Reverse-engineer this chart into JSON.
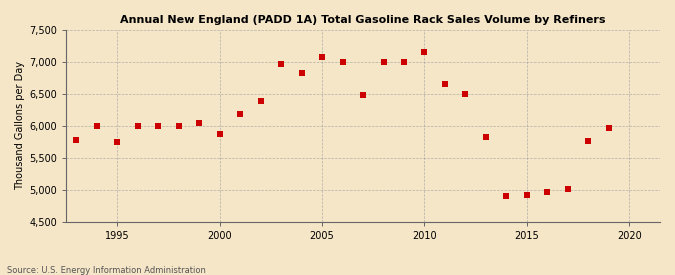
{
  "title": "Annual New England (PADD 1A) Total Gasoline Rack Sales Volume by Refiners",
  "ylabel": "Thousand Gallons per Day",
  "source": "Source: U.S. Energy Information Administration",
  "background_color": "#f5e6c8",
  "plot_bg_color": "#f5e6c8",
  "years": [
    1993,
    1994,
    1995,
    1996,
    1997,
    1998,
    1999,
    2000,
    2001,
    2002,
    2003,
    2004,
    2005,
    2006,
    2007,
    2008,
    2009,
    2010,
    2011,
    2012,
    2013,
    2014,
    2015,
    2016,
    2017,
    2018,
    2019
  ],
  "values": [
    5780,
    6000,
    5750,
    5990,
    6000,
    6000,
    6040,
    5880,
    6180,
    6390,
    6960,
    6820,
    7070,
    7000,
    6490,
    7000,
    7000,
    7150,
    6650,
    6500,
    5830,
    4900,
    4920,
    4960,
    5010,
    5760,
    5960
  ],
  "marker_color": "#cc0000",
  "marker_size": 18,
  "ylim": [
    4500,
    7500
  ],
  "yticks": [
    4500,
    5000,
    5500,
    6000,
    6500,
    7000,
    7500
  ],
  "xlim": [
    1992.5,
    2021.5
  ],
  "xticks": [
    1995,
    2000,
    2005,
    2010,
    2015,
    2020
  ]
}
